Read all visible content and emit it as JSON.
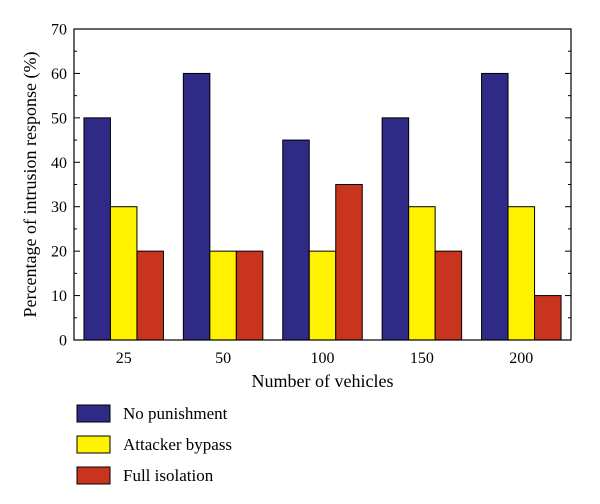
{
  "chart_data": {
    "type": "bar",
    "categories": [
      "25",
      "50",
      "100",
      "150",
      "200"
    ],
    "series": [
      {
        "name": "No punishment",
        "values": [
          50,
          60,
          45,
          50,
          60
        ],
        "color": "#2e2a86"
      },
      {
        "name": "Attacker bypass",
        "values": [
          30,
          20,
          20,
          30,
          30
        ],
        "color": "#fff200"
      },
      {
        "name": "Full isolation",
        "values": [
          20,
          20,
          35,
          20,
          10
        ],
        "color": "#c8341d"
      }
    ],
    "title": "",
    "xlabel": "Number of vehicles",
    "ylabel": "Percentage of intrusion response (%)",
    "ylim": [
      0,
      70
    ],
    "yticks": [
      "0",
      "10",
      "20",
      "30",
      "40",
      "50",
      "60",
      "70"
    ],
    "grid": false,
    "legend_position": "bottom-left"
  }
}
